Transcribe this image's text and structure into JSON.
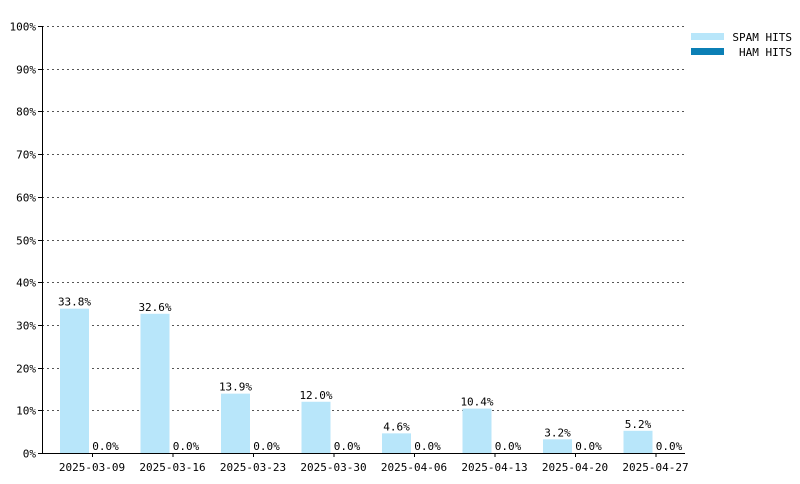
{
  "chart_data": {
    "type": "bar",
    "title": "",
    "xlabel": "",
    "ylabel": "",
    "ylim": [
      0,
      100
    ],
    "grid": true,
    "legend_position": "top-right",
    "y_ticks": [
      "0%",
      "10%",
      "20%",
      "30%",
      "40%",
      "50%",
      "60%",
      "70%",
      "80%",
      "90%",
      "100%"
    ],
    "categories": [
      "2025-03-09",
      "2025-03-16",
      "2025-03-23",
      "2025-03-30",
      "2025-04-06",
      "2025-04-13",
      "2025-04-20",
      "2025-04-27"
    ],
    "series": [
      {
        "name": "SPAM HITS",
        "color": "#b8e6fa",
        "values": [
          33.8,
          32.6,
          13.9,
          12.0,
          4.6,
          10.4,
          3.2,
          5.2
        ],
        "labels": [
          "33.8%",
          "32.6%",
          "13.9%",
          "12.0%",
          "4.6%",
          "10.4%",
          "3.2%",
          "5.2%"
        ]
      },
      {
        "name": "HAM HITS",
        "color": "#0b7fb5",
        "values": [
          0,
          0,
          0,
          0,
          0,
          0,
          0,
          0
        ],
        "labels": [
          "0.0%",
          "0.0%",
          "0.0%",
          "0.0%",
          "0.0%",
          "0.0%",
          "0.0%",
          "0.0%"
        ]
      }
    ]
  }
}
